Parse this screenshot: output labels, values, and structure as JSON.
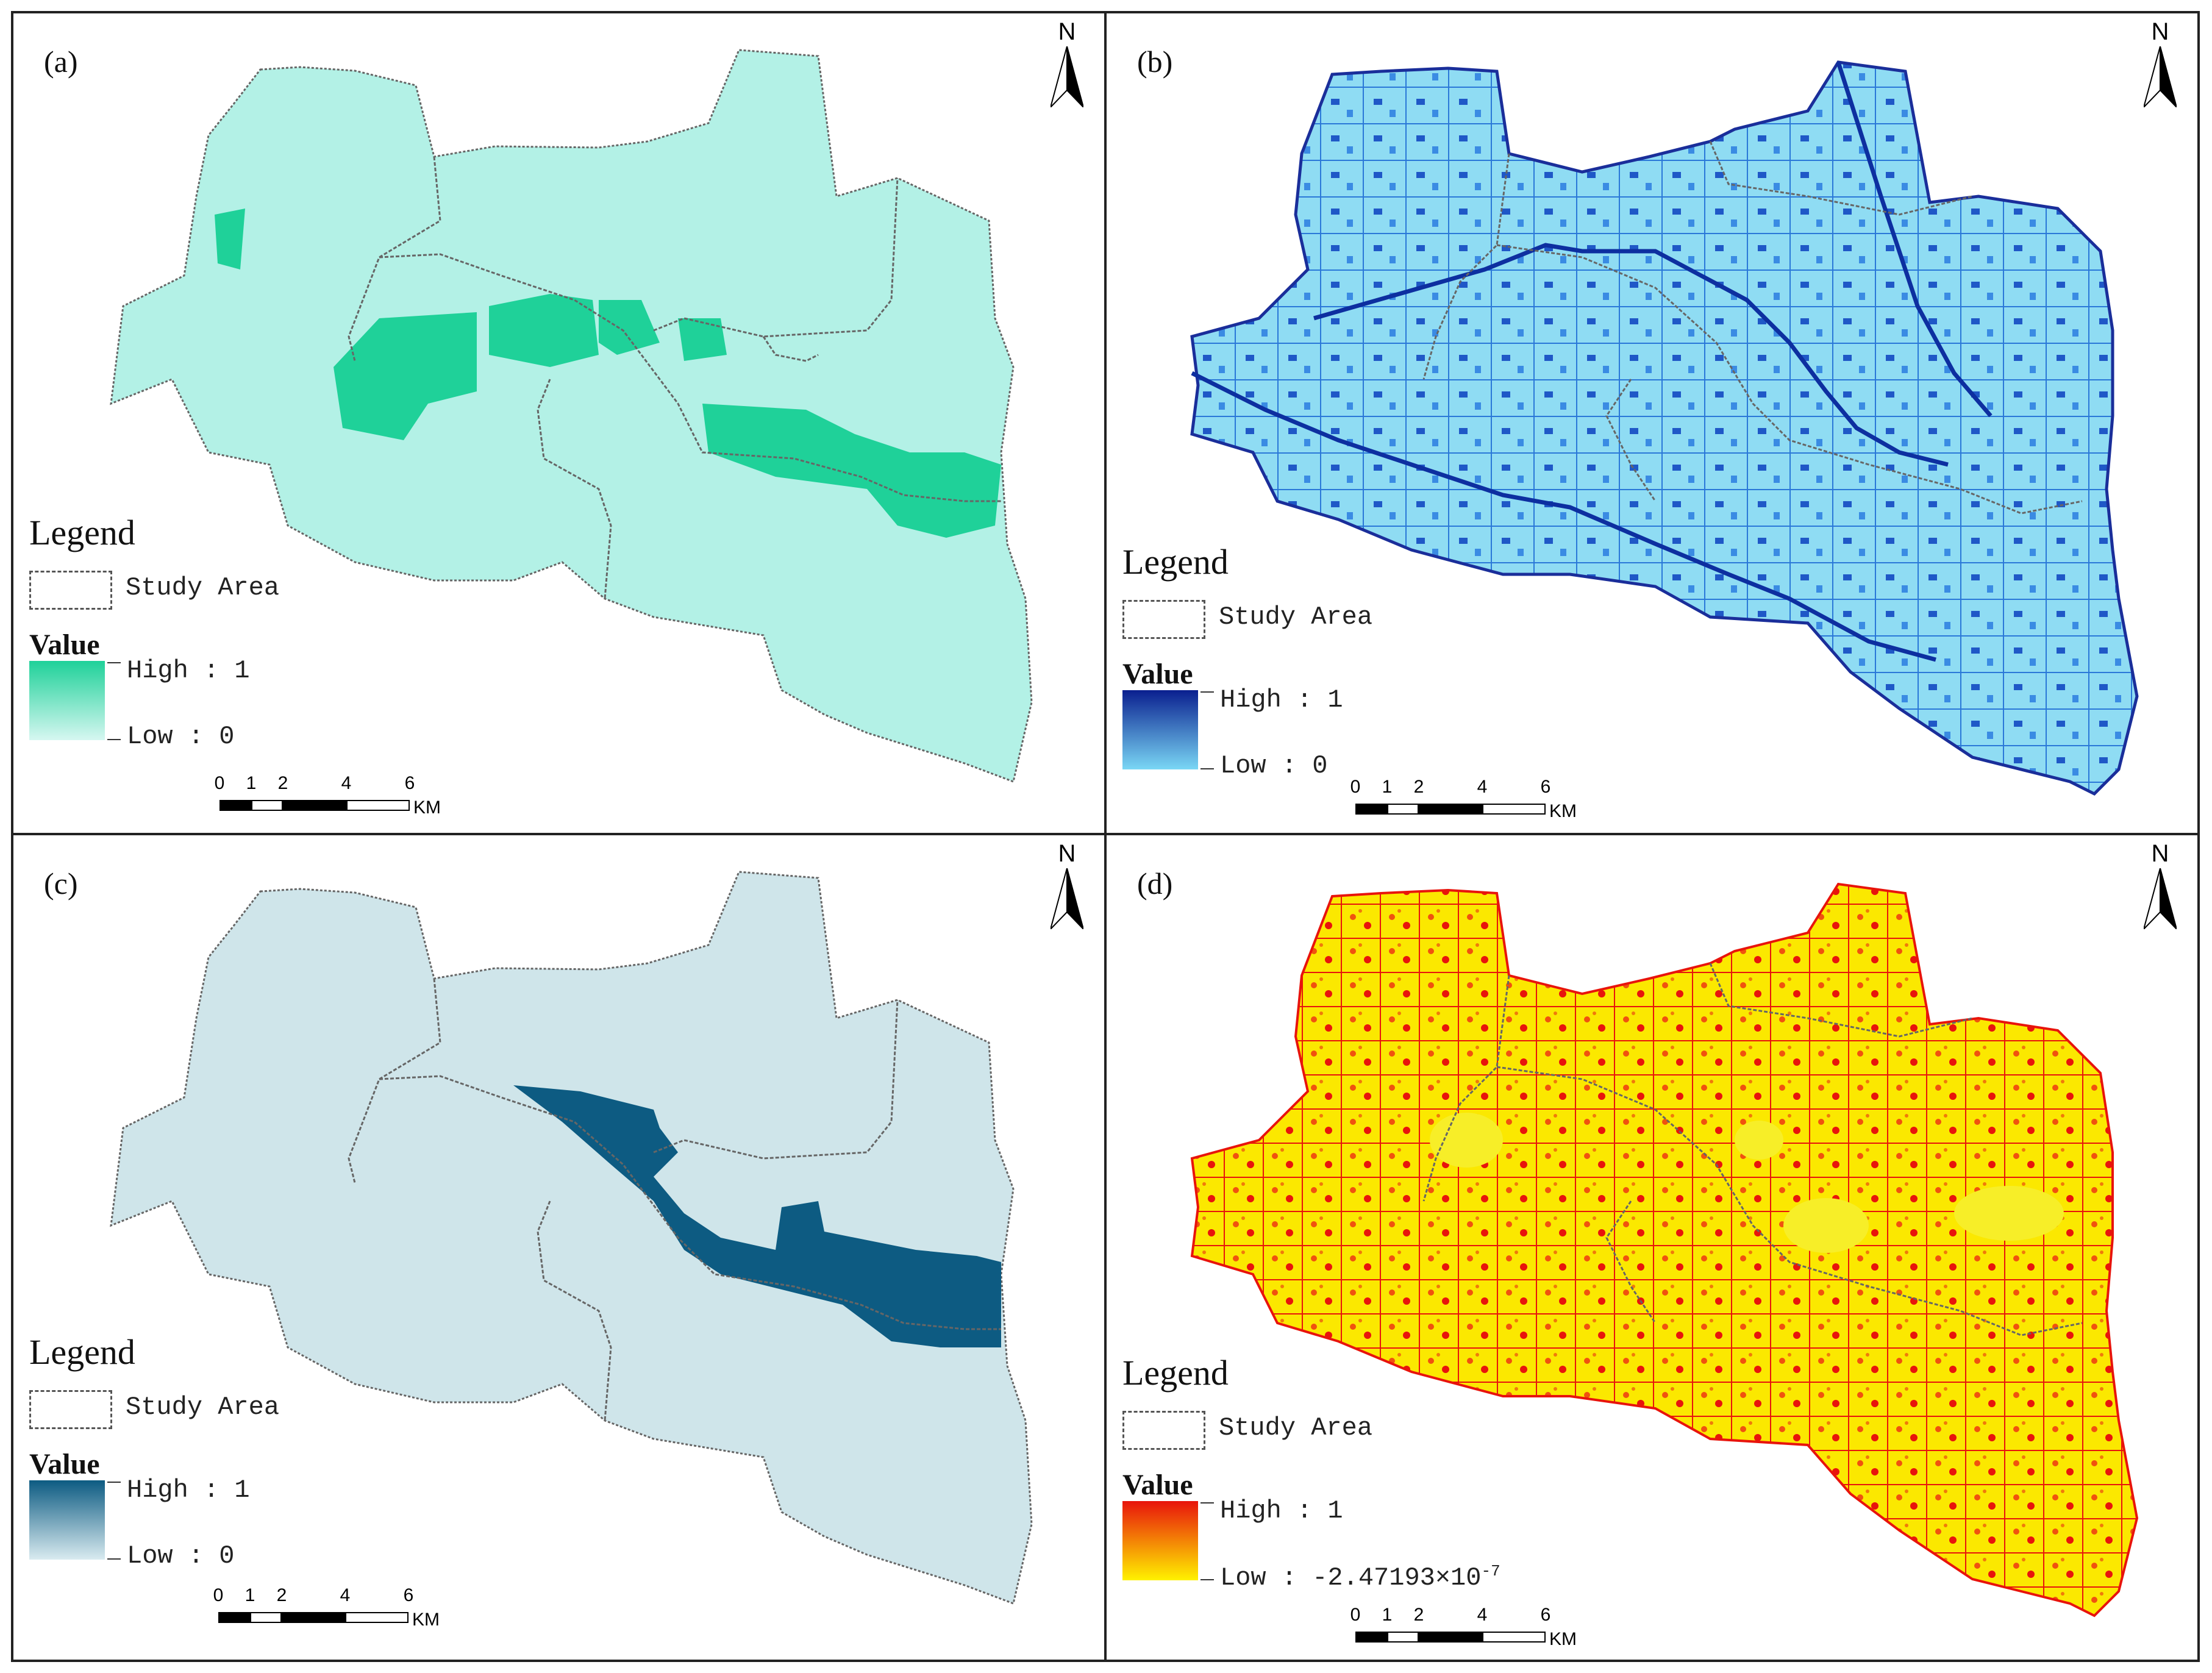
{
  "panels": [
    {
      "id": "a",
      "label": "(a)",
      "fill": "#b3f1e6",
      "high_color": "#1fd199",
      "low_color": "#d6f7f1",
      "legend": {
        "title": "Legend",
        "study_area": "Study Area",
        "value_title": "Value",
        "high": "High : 1",
        "low": "Low : 0"
      }
    },
    {
      "id": "b",
      "label": "(b)",
      "fill": "#8fdcf3",
      "high_color": "#0a1f8f",
      "low_color": "#7ad7f5",
      "legend": {
        "title": "Legend",
        "study_area": "Study Area",
        "value_title": "Value",
        "high": "High : 1",
        "low": "Low : 0"
      }
    },
    {
      "id": "c",
      "label": "(c)",
      "fill": "#cfe5ea",
      "high_color": "#0d5b82",
      "low_color": "#d9ebf0",
      "legend": {
        "title": "Legend",
        "study_area": "Study Area",
        "value_title": "Value",
        "high": "High : 1",
        "low": "Low : 0"
      }
    },
    {
      "id": "d",
      "label": "(d)",
      "fill": "#fbe800",
      "high_color": "#e8140c",
      "low_color": "#fff200",
      "legend": {
        "title": "Legend",
        "study_area": "Study Area",
        "value_title": "Value",
        "high": "High : 1",
        "low": "Low : -2.47193×10",
        "low_exp": "-7"
      }
    }
  ],
  "north_label": "N",
  "scale_bar": {
    "ticks": [
      "0",
      "1",
      "2",
      "4",
      "6"
    ],
    "unit": "KM"
  }
}
